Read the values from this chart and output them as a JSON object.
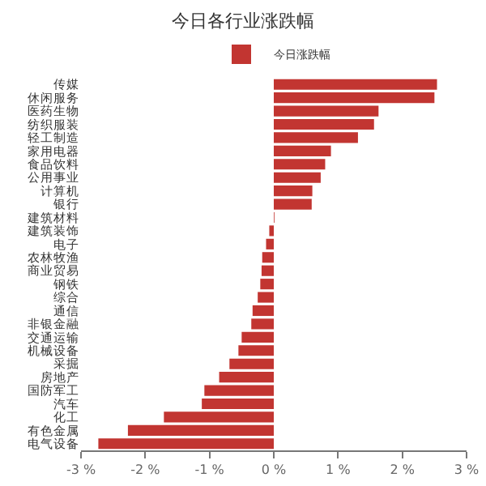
{
  "chart_data": {
    "type": "bar",
    "orientation": "horizontal",
    "title": "今日各行业涨跌幅",
    "categories": [
      "传媒",
      "休闲服务",
      "医药生物",
      "纺织服装",
      "轻工制造",
      "家用电器",
      "食品饮料",
      "公用事业",
      "计算机",
      "银行",
      "建筑材料",
      "建筑装饰",
      "电子",
      "农林牧渔",
      "商业贸易",
      "钢铁",
      "综合",
      "通信",
      "非银金融",
      "交通运输",
      "机械设备",
      "采掘",
      "房地产",
      "国防军工",
      "汽车",
      "化工",
      "有色金属",
      "电气设备"
    ],
    "series": [
      {
        "name": "今日涨跌幅",
        "color": "#c23531",
        "values": [
          2.54,
          2.5,
          1.63,
          1.56,
          1.31,
          0.89,
          0.8,
          0.73,
          0.6,
          0.59,
          0.01,
          -0.07,
          -0.12,
          -0.18,
          -0.19,
          -0.21,
          -0.25,
          -0.33,
          -0.35,
          -0.5,
          -0.55,
          -0.69,
          -0.85,
          -1.08,
          -1.12,
          -1.71,
          -2.27,
          -2.73
        ]
      }
    ],
    "xlim": [
      -3,
      3
    ],
    "xticks": [
      {
        "value": -3,
        "label": "-3 %"
      },
      {
        "value": -2,
        "label": "-2 %"
      },
      {
        "value": -1,
        "label": "-1 %"
      },
      {
        "value": 0,
        "label": "0 %"
      },
      {
        "value": 1,
        "label": "1 %"
      },
      {
        "value": 2,
        "label": "2 %"
      },
      {
        "value": 3,
        "label": "3 %"
      }
    ],
    "grid": false,
    "legend": "top"
  }
}
